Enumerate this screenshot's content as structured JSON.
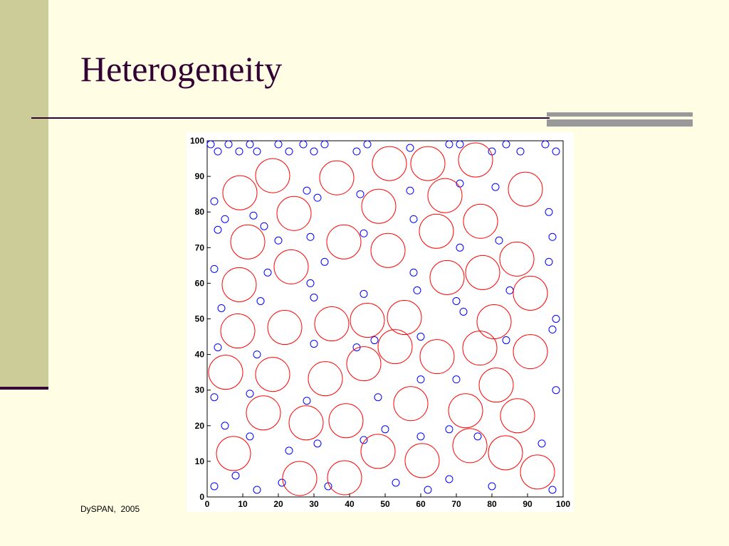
{
  "header": {
    "title": "Heterogeneity"
  },
  "footer": "DySPAN,  2005",
  "chart_data": {
    "type": "scatter",
    "xlim": [
      0,
      100
    ],
    "ylim": [
      0,
      100
    ],
    "xticks": [
      0,
      10,
      20,
      30,
      40,
      50,
      60,
      70,
      80,
      90,
      100
    ],
    "yticks": [
      0,
      10,
      20,
      30,
      40,
      50,
      60,
      70,
      80,
      90,
      100
    ],
    "series": [
      {
        "color": "#0000ff",
        "radius": 1,
        "x": [
          1,
          3,
          6,
          9,
          12,
          14,
          20,
          23,
          27,
          30,
          33,
          42,
          45,
          57,
          68,
          71,
          80,
          84,
          88,
          95,
          98,
          2,
          5,
          13,
          28,
          31,
          43,
          57,
          71,
          81,
          96,
          3,
          16,
          20,
          29,
          44,
          58,
          71,
          82,
          97,
          2,
          17,
          29,
          33,
          58,
          70,
          85,
          96,
          4,
          15,
          30,
          44,
          59,
          72,
          98,
          3,
          14,
          30,
          42,
          47,
          60,
          84,
          97,
          2,
          12,
          28,
          48,
          60,
          70,
          98,
          5,
          12,
          23,
          31,
          44,
          50,
          60,
          68,
          76,
          94,
          2,
          8,
          14,
          21,
          34,
          53,
          62,
          68,
          80,
          97
        ],
        "y": [
          99,
          97,
          99,
          97,
          99,
          97,
          99,
          97,
          99,
          97,
          99,
          97,
          99,
          98,
          99,
          99,
          97,
          99,
          97,
          99,
          97,
          83,
          78,
          79,
          86,
          84,
          85,
          86,
          88,
          87,
          80,
          75,
          76,
          72,
          73,
          74,
          78,
          70,
          72,
          73,
          64,
          63,
          60,
          66,
          63,
          55,
          58,
          66,
          53,
          55,
          56,
          57,
          58,
          52,
          50,
          42,
          40,
          43,
          42,
          44,
          45,
          44,
          47,
          28,
          29,
          27,
          28,
          33,
          33,
          30,
          20,
          17,
          13,
          15,
          16,
          19,
          17,
          19,
          17,
          15,
          3,
          6,
          2,
          4,
          3,
          4,
          2,
          5,
          3,
          2
        ]
      },
      {
        "color": "#ff0000",
        "radius": 4.8,
        "x": [
          18.4,
          36.4,
          51.2,
          62,
          75.4,
          9.2,
          24.4,
          48.2,
          66.8,
          89.4,
          11.4,
          38.4,
          50.8,
          64.4,
          76.8,
          23.6,
          87,
          9,
          67.4,
          77.4,
          90.8,
          21.8,
          35,
          45,
          55.4,
          80.6,
          8.6,
          52.8,
          64.6,
          76.6,
          90.8,
          5.2,
          18.4,
          44,
          33.2,
          81.2,
          15.8,
          27.8,
          39,
          57.2,
          72.6,
          87.2,
          7.4,
          48,
          60.4,
          73.8,
          83.8,
          26,
          38.6,
          92.8
        ],
        "y": [
          90.2,
          89.6,
          93.6,
          93.6,
          94.6,
          85.4,
          79.6,
          81.6,
          84.6,
          86.4,
          71.6,
          71.6,
          69.2,
          74.6,
          77.4,
          64.6,
          66.8,
          59.6,
          61.6,
          63,
          57.2,
          47.6,
          48.6,
          49.6,
          50.4,
          49.2,
          46.6,
          42.2,
          39.4,
          41.8,
          40.8,
          35,
          34.4,
          37.4,
          33.2,
          31.4,
          23.6,
          20.8,
          21.4,
          26.2,
          24.2,
          22.8,
          12.2,
          12.8,
          10.2,
          14.4,
          12.4,
          5.2,
          5.4,
          7
        ]
      }
    ]
  }
}
